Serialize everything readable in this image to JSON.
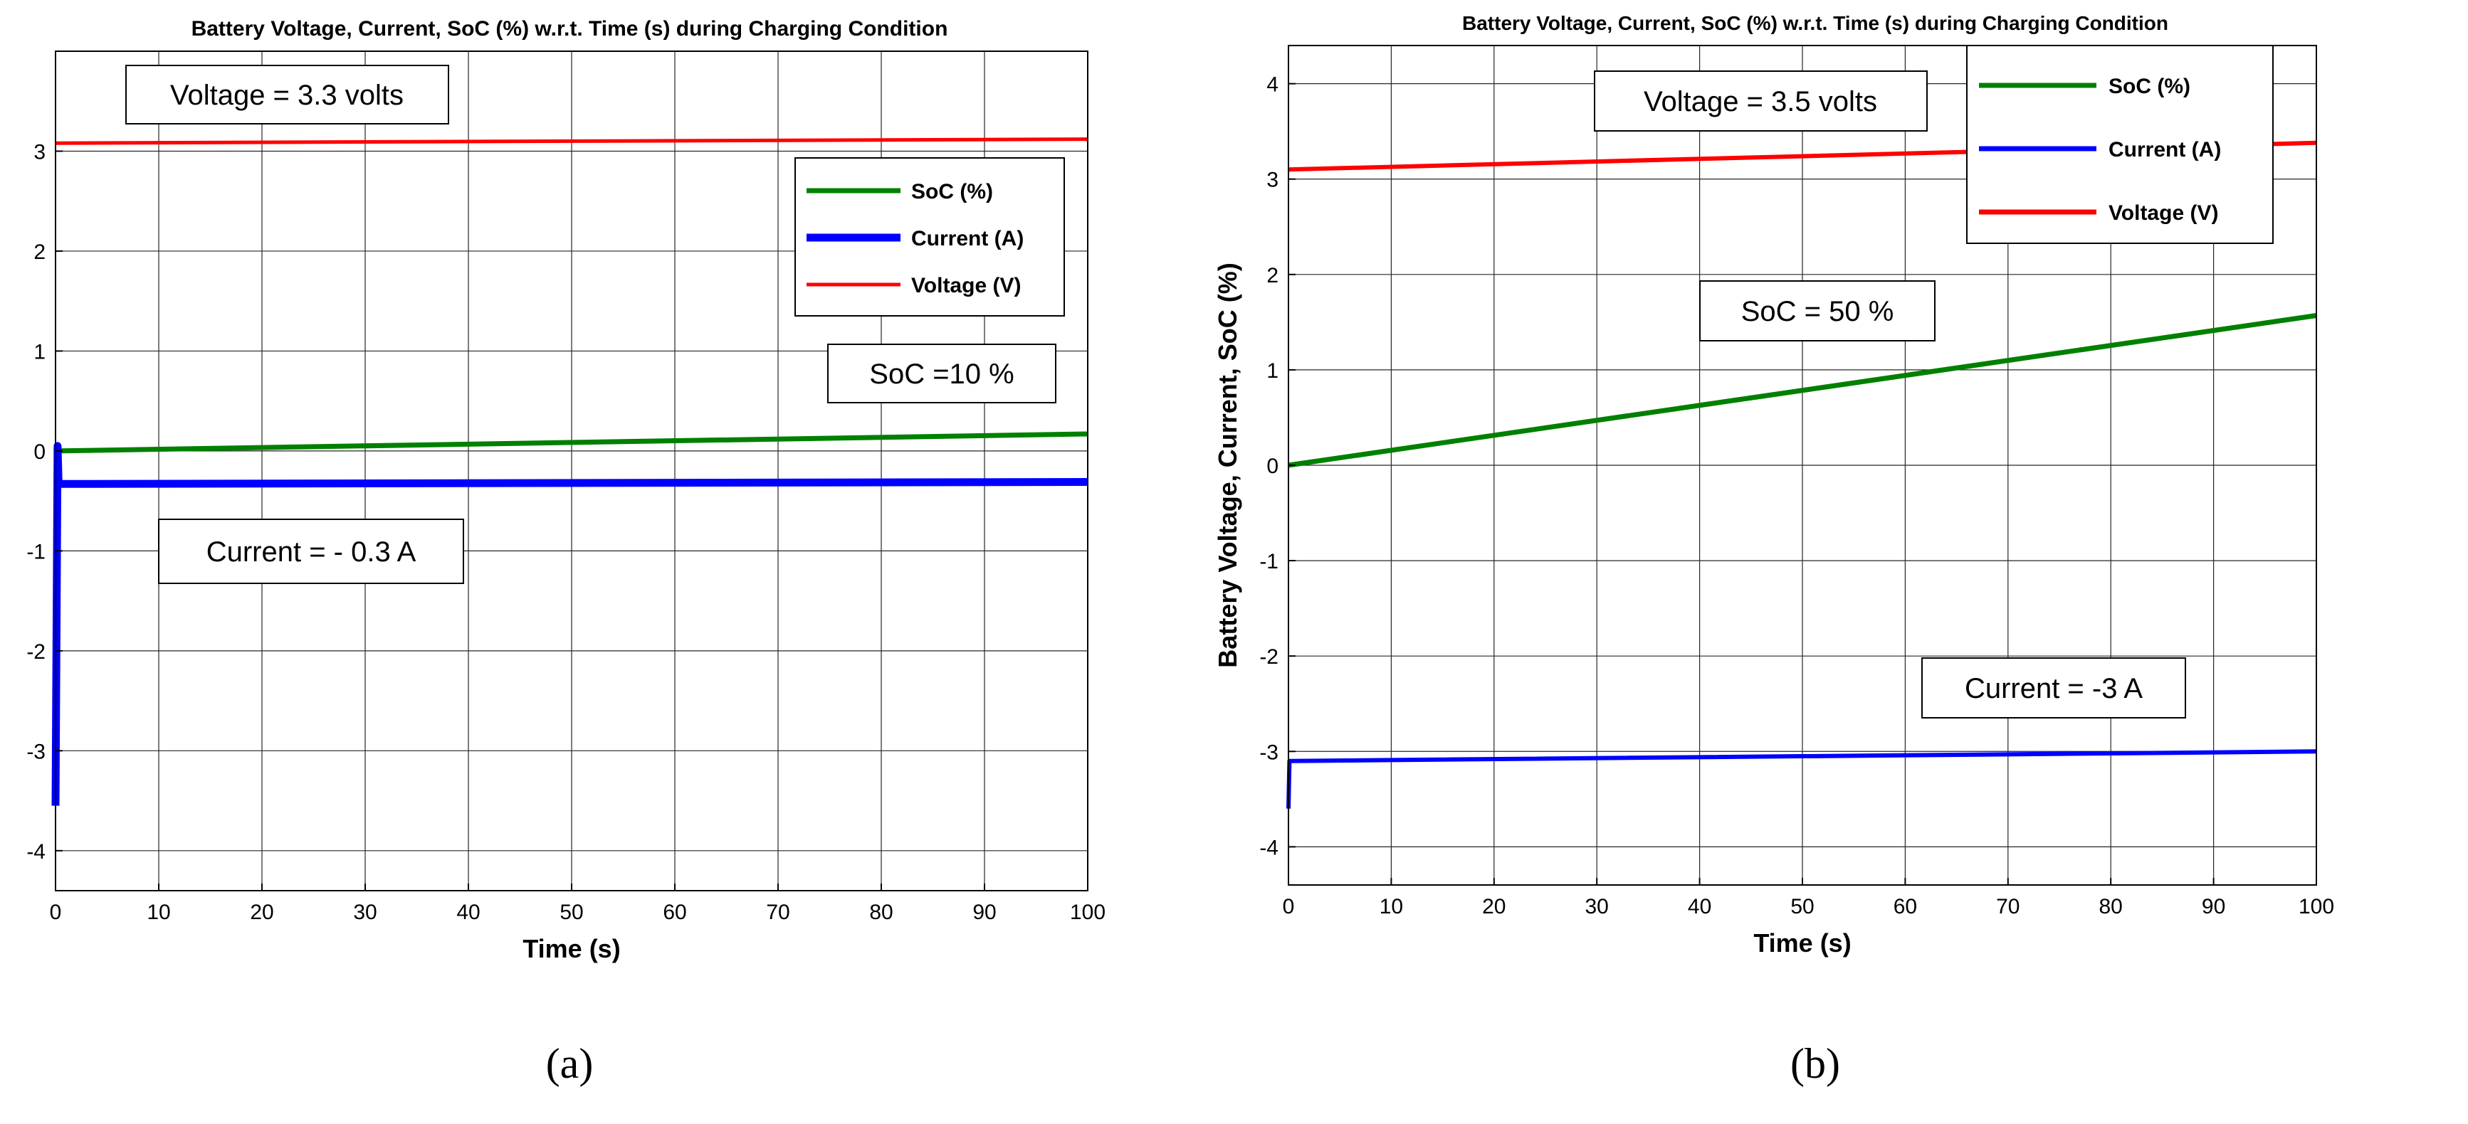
{
  "chart_data": [
    {
      "type": "line",
      "panel_label": "(a)",
      "title": "Battery Voltage, Current, SoC (%) w.r.t. Time (s) during Charging Condition",
      "xlabel": "Time (s)",
      "ylabel": "",
      "xlim": [
        0,
        100
      ],
      "ylim": [
        -4.4,
        4
      ],
      "xticks": [
        "0",
        "10",
        "20",
        "30",
        "40",
        "50",
        "60",
        "70",
        "80",
        "90",
        "100"
      ],
      "yticks": [
        "-4",
        "-3",
        "-2",
        "-1",
        "0",
        "1",
        "2",
        "3"
      ],
      "grid": true,
      "legend_position": "top-right",
      "series": [
        {
          "name": "SoC (%)",
          "color": "#008000",
          "x": [
            0,
            100
          ],
          "y": [
            0.0,
            0.17
          ]
        },
        {
          "name": "Current (A)",
          "color": "#0000ff",
          "x": [
            0,
            0.2,
            0.3,
            100
          ],
          "y": [
            -3.55,
            0.05,
            -0.33,
            -0.31
          ]
        },
        {
          "name": "Voltage (V)",
          "color": "#ff0000",
          "x": [
            0,
            100
          ],
          "y": [
            3.08,
            3.12
          ]
        }
      ],
      "annotations": [
        {
          "text": "Voltage = 3.3 volts"
        },
        {
          "text": "SoC =10 %"
        },
        {
          "text": "Current = - 0.3 A"
        }
      ]
    },
    {
      "type": "line",
      "panel_label": "(b)",
      "title": "Battery Voltage, Current, SoC (%) w.r.t. Time (s) during Charging Condition",
      "xlabel": "Time (s)",
      "ylabel": "Battery Voltage, Current, SoC (%)",
      "xlim": [
        0,
        100
      ],
      "ylim": [
        -4.4,
        4.4
      ],
      "xticks": [
        "0",
        "10",
        "20",
        "30",
        "40",
        "50",
        "60",
        "70",
        "80",
        "90",
        "100"
      ],
      "yticks": [
        "-4",
        "-3",
        "-2",
        "-1",
        "0",
        "1",
        "2",
        "3",
        "4"
      ],
      "grid": true,
      "legend_position": "top-right",
      "series": [
        {
          "name": "SoC (%)",
          "color": "#008000",
          "x": [
            0,
            100
          ],
          "y": [
            0.0,
            1.57
          ]
        },
        {
          "name": "Current (A)",
          "color": "#0000ff",
          "x": [
            0,
            0.1,
            0.2,
            100
          ],
          "y": [
            -3.6,
            -3.1,
            -3.1,
            -3.0
          ]
        },
        {
          "name": "Voltage (V)",
          "color": "#ff0000",
          "x": [
            0,
            100
          ],
          "y": [
            3.1,
            3.38
          ]
        }
      ],
      "annotations": [
        {
          "text": "Voltage = 3.5 volts"
        },
        {
          "text": "SoC = 50 %"
        },
        {
          "text": "Current = -3 A"
        }
      ]
    }
  ]
}
